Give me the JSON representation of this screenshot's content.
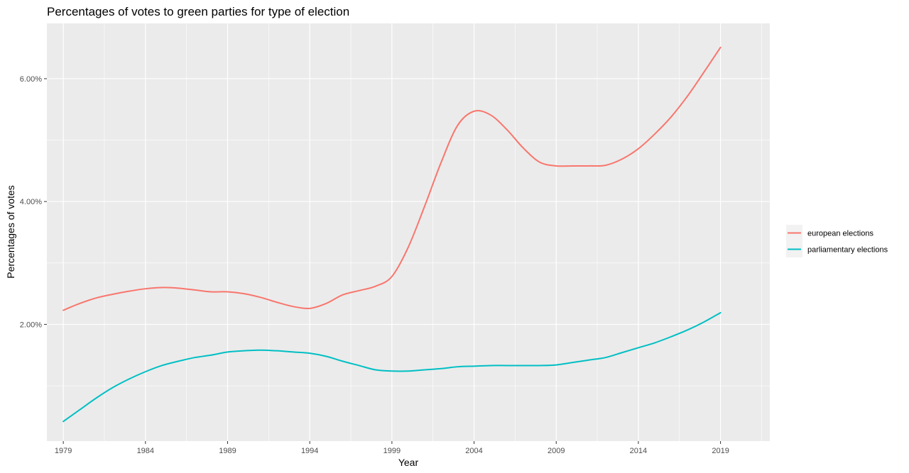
{
  "chart_data": {
    "type": "line",
    "title": "Percentages of votes to green parties for type of election",
    "xlabel": "Year",
    "ylabel": "Percentages of votes",
    "xlim": [
      1978,
      2022
    ],
    "ylim": [
      0.1,
      6.9
    ],
    "x_ticks": [
      1979,
      1984,
      1989,
      1994,
      1999,
      2004,
      2009,
      2014,
      2019
    ],
    "x_tick_labels": [
      "1979",
      "1984",
      "1989",
      "1994",
      "1999",
      "2004",
      "2009",
      "2014",
      "2019"
    ],
    "y_ticks": [
      2,
      4,
      6
    ],
    "y_tick_labels": [
      "2.00%",
      "4.00%",
      "6.00%"
    ],
    "y_minor_ticks": [
      1,
      3,
      5
    ],
    "x_minor_ticks": [
      1981.5,
      1986.5,
      1991.5,
      1996.5,
      2001.5,
      2006.5,
      2011.5,
      2016.5,
      2021.5
    ],
    "grid": true,
    "legend_position": "right",
    "panel_background": "#ebebeb",
    "series": [
      {
        "name": "european elections",
        "color": "#f8766d",
        "x": [
          1979,
          1980,
          1981,
          1982,
          1983,
          1984,
          1985,
          1986,
          1987,
          1988,
          1989,
          1990,
          1991,
          1992,
          1993,
          1994,
          1995,
          1996,
          1997,
          1998,
          1999,
          2000,
          2001,
          2002,
          2003,
          2004,
          2005,
          2006,
          2007,
          2008,
          2009,
          2010,
          2011,
          2012,
          2013,
          2014,
          2015,
          2016,
          2017,
          2018,
          2019
        ],
        "y": [
          2.23,
          2.34,
          2.43,
          2.49,
          2.54,
          2.58,
          2.6,
          2.59,
          2.56,
          2.53,
          2.53,
          2.5,
          2.44,
          2.36,
          2.29,
          2.26,
          2.34,
          2.48,
          2.55,
          2.62,
          2.78,
          3.26,
          3.93,
          4.64,
          5.24,
          5.47,
          5.41,
          5.17,
          4.87,
          4.64,
          4.58,
          4.58,
          4.58,
          4.59,
          4.69,
          4.86,
          5.1,
          5.38,
          5.72,
          6.11,
          6.51
        ]
      },
      {
        "name": "parliamentary elections",
        "color": "#00bfc4",
        "x": [
          1979,
          1980,
          1981,
          1982,
          1983,
          1984,
          1985,
          1986,
          1987,
          1988,
          1989,
          1990,
          1991,
          1992,
          1993,
          1994,
          1995,
          1996,
          1997,
          1998,
          1999,
          2000,
          2001,
          2002,
          2003,
          2004,
          2005,
          2006,
          2007,
          2008,
          2009,
          2010,
          2011,
          2012,
          2013,
          2014,
          2015,
          2016,
          2017,
          2018,
          2019
        ],
        "y": [
          0.42,
          0.61,
          0.8,
          0.97,
          1.11,
          1.23,
          1.33,
          1.4,
          1.46,
          1.5,
          1.55,
          1.57,
          1.58,
          1.57,
          1.55,
          1.53,
          1.48,
          1.4,
          1.33,
          1.26,
          1.24,
          1.24,
          1.26,
          1.28,
          1.31,
          1.32,
          1.33,
          1.33,
          1.33,
          1.33,
          1.34,
          1.38,
          1.42,
          1.46,
          1.54,
          1.62,
          1.7,
          1.8,
          1.91,
          2.04,
          2.19
        ]
      }
    ]
  }
}
